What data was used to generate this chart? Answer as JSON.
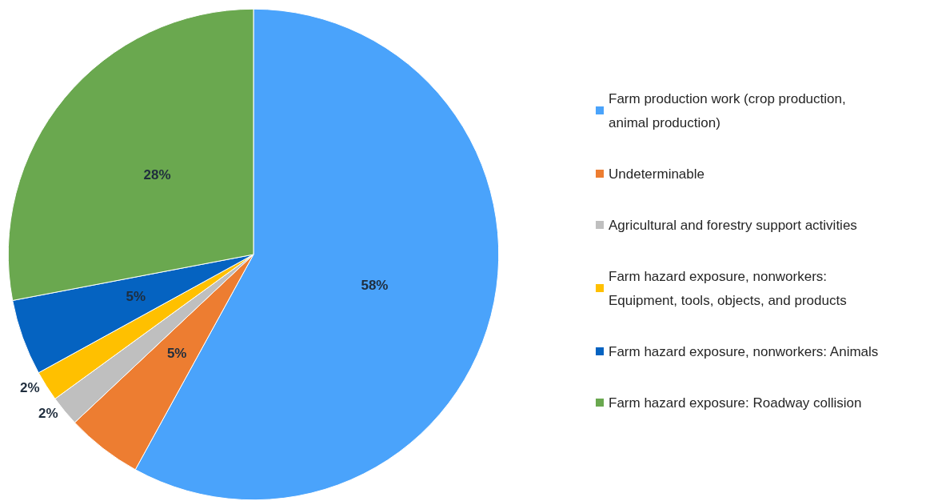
{
  "chart_data": {
    "type": "pie",
    "categories": [
      "Farm production work (crop production, animal production)",
      "Undeterminable",
      "Agricultural and forestry support activities",
      "Farm hazard exposure, nonworkers: Equipment, tools, objects, and products",
      "Farm hazard exposure, nonworkers: Animals",
      "Farm hazard exposure: Roadway collision"
    ],
    "values": [
      58,
      5,
      2,
      2,
      5,
      28
    ],
    "colors": [
      "#4aa3fb",
      "#ed7d31",
      "#bfbfbf",
      "#ffc000",
      "#0563c1",
      "#6aa84f"
    ],
    "value_labels": [
      "58%",
      "5%",
      "2%",
      "2%",
      "5%",
      "28%"
    ],
    "legend": "right"
  }
}
